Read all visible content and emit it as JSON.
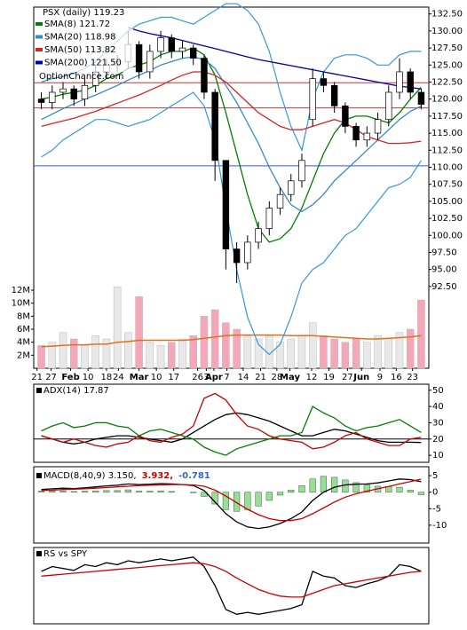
{
  "chart_data": [
    {
      "type": "candlestick",
      "title": "PSX (daily) 119.23",
      "watermark": "OptionChance.com",
      "x": [
        0,
        1,
        2,
        3,
        4,
        5,
        6,
        7,
        8,
        9,
        10,
        11,
        12,
        13,
        14,
        15,
        16,
        17,
        18,
        19,
        20,
        21,
        22,
        23,
        24,
        25,
        26,
        27,
        28,
        29,
        30,
        31,
        32,
        33,
        34,
        35
      ],
      "xlim": [
        -0.7,
        35.7
      ],
      "xticks": [
        {
          "value": -0.4,
          "label": "21"
        },
        {
          "value": 0.9,
          "label": "27"
        },
        {
          "value": 2.7,
          "label": "Feb"
        },
        {
          "value": 4.3,
          "label": "10"
        },
        {
          "value": 6.0,
          "label": "18"
        },
        {
          "value": 7.1,
          "label": "24"
        },
        {
          "value": 9.0,
          "label": "Mar"
        },
        {
          "value": 10.6,
          "label": "10"
        },
        {
          "value": 12.2,
          "label": "17"
        },
        {
          "value": 14.4,
          "label": "26"
        },
        {
          "value": 15.2,
          "label": "3"
        },
        {
          "value": 15.9,
          "label": "Apr"
        },
        {
          "value": 17.1,
          "label": "7"
        },
        {
          "value": 18.6,
          "label": "14"
        },
        {
          "value": 20.2,
          "label": "21"
        },
        {
          "value": 21.7,
          "label": "28"
        },
        {
          "value": 22.9,
          "label": "May"
        },
        {
          "value": 24.9,
          "label": "12"
        },
        {
          "value": 26.5,
          "label": "19"
        },
        {
          "value": 28.2,
          "label": "27"
        },
        {
          "value": 29.5,
          "label": "Jun"
        },
        {
          "value": 31.2,
          "label": "9"
        },
        {
          "value": 32.7,
          "label": "16"
        },
        {
          "value": 34.2,
          "label": "23"
        }
      ],
      "open": [
        120,
        119.5,
        121,
        121.5,
        120,
        122,
        124,
        125,
        125.5,
        128,
        124,
        127,
        129,
        127,
        127.5,
        126,
        121,
        111,
        98,
        96,
        99,
        101,
        104,
        106,
        108,
        117,
        123,
        122,
        119,
        116,
        114,
        115,
        117,
        121,
        124,
        121
      ],
      "high": [
        121,
        122,
        122.5,
        122,
        123,
        125,
        126,
        126.5,
        130,
        128.5,
        128,
        130,
        129.5,
        128.5,
        128,
        126.5,
        121.5,
        111,
        99,
        100,
        102,
        105,
        107,
        109,
        112,
        124.5,
        124,
        122.5,
        119.5,
        116.5,
        116,
        118,
        122,
        126,
        124.5,
        121.5
      ],
      "low": [
        118.5,
        118.5,
        120,
        119,
        119,
        121,
        123,
        124,
        124.5,
        123,
        123,
        126,
        126,
        126,
        125,
        120,
        108,
        95,
        93,
        95,
        98,
        100,
        103,
        105,
        107,
        116,
        121,
        118,
        115,
        113,
        113,
        114,
        116,
        120,
        120,
        118.5
      ],
      "close": [
        119.5,
        121,
        121.5,
        120,
        122,
        124,
        125,
        125.5,
        128,
        124,
        127,
        129,
        127,
        127.5,
        126,
        121,
        111,
        98,
        96,
        99,
        101,
        104,
        106,
        108,
        111,
        123,
        122,
        119,
        116,
        114,
        115,
        117,
        121,
        124,
        121,
        119.23
      ],
      "up_color": "#ffffff",
      "down_color": "#000000",
      "bands": {
        "color": "#3399dd",
        "upper": [
          122.5,
          123,
          123.3,
          123.8,
          124.5,
          125.5,
          127,
          128.5,
          130,
          131,
          131.5,
          132,
          132,
          131.5,
          131,
          132,
          133,
          134,
          134,
          133,
          131,
          127,
          121,
          116,
          112.5,
          120,
          124,
          126,
          126.5,
          126.5,
          126,
          125,
          125,
          126.5,
          127,
          127
        ],
        "lower": [
          111.5,
          112.5,
          114,
          115,
          116,
          117,
          117,
          116.5,
          116,
          116.5,
          117,
          118,
          119,
          120,
          121,
          119,
          114,
          104,
          95,
          88,
          84,
          82.5,
          84,
          88,
          93,
          95,
          96,
          98,
          100,
          101,
          103,
          105,
          107,
          107.5,
          108.5,
          111
        ]
      },
      "reference_lines": [
        {
          "value": 122.4,
          "color": "#cc3333"
        },
        {
          "value": 118.7,
          "color": "#cc3333"
        },
        {
          "value": 110.2,
          "color": "#3355dd"
        }
      ],
      "series": [
        {
          "name": "SMA(8) 121.72",
          "color": "#008000",
          "values": [
            120,
            120.3,
            120.7,
            121,
            121.3,
            122,
            123,
            123.5,
            124.5,
            125,
            125.5,
            126.5,
            127,
            127,
            127.5,
            126.5,
            123.5,
            118,
            112,
            106,
            101,
            99,
            99.5,
            101,
            104,
            108,
            112,
            115,
            117,
            117.5,
            117.5,
            117,
            116.5,
            118,
            120,
            121.72
          ]
        },
        {
          "name": "SMA(20) 118.98",
          "color": "#3388cc",
          "values": [
            117,
            117.8,
            118.6,
            119.3,
            120,
            120.6,
            121.3,
            122,
            122.8,
            123.5,
            124.2,
            125,
            125.5,
            126,
            126.2,
            125.8,
            124.5,
            122,
            119.5,
            116.5,
            113.5,
            110,
            107,
            104.5,
            103.5,
            104.5,
            106,
            108,
            109.5,
            111,
            112.5,
            114,
            115.5,
            117,
            118.2,
            118.98
          ]
        },
        {
          "name": "SMA(50) 113.82",
          "color": "#dd2222",
          "values": [
            116,
            116.4,
            116.8,
            117.2,
            117.7,
            118.2,
            118.8,
            119.4,
            120,
            120.6,
            121.3,
            122,
            122.8,
            123.5,
            124,
            124,
            123.5,
            122.5,
            121,
            119.5,
            118,
            117,
            116,
            115.5,
            115.5,
            116,
            116.5,
            117,
            116.5,
            115.5,
            114.5,
            114,
            113.5,
            113.5,
            113.6,
            113.82
          ]
        },
        {
          "name": "SMA(200) 121.50",
          "color": "#0000aa",
          "values": [
            null,
            null,
            null,
            null,
            null,
            null,
            null,
            null,
            130.5,
            130,
            129.6,
            129.3,
            129,
            128.6,
            128.2,
            127.8,
            127.4,
            127,
            126.6,
            126.2,
            125.8,
            125.5,
            125.2,
            124.9,
            124.6,
            124.3,
            124,
            123.7,
            123.4,
            123.1,
            122.8,
            122.5,
            122.2,
            121.9,
            121.7,
            121.5
          ]
        }
      ],
      "ylim": [
        80.5,
        133.5
      ],
      "yticks": [
        {
          "value": 132.5,
          "label": "132.50"
        },
        {
          "value": 130,
          "label": "130.00"
        },
        {
          "value": 127.5,
          "label": "127.50"
        },
        {
          "value": 125,
          "label": "125.00"
        },
        {
          "value": 122.5,
          "label": "122.50"
        },
        {
          "value": 120,
          "label": "120.00"
        },
        {
          "value": 117.5,
          "label": "117.50"
        },
        {
          "value": 115,
          "label": "115.00"
        },
        {
          "value": 112.5,
          "label": "112.50"
        },
        {
          "value": 110,
          "label": "110.00"
        },
        {
          "value": 107.5,
          "label": "107.50"
        },
        {
          "value": 105,
          "label": "105.00"
        },
        {
          "value": 102.5,
          "label": "102.50"
        },
        {
          "value": 100,
          "label": "100.00"
        },
        {
          "value": 97.5,
          "label": "97.50"
        },
        {
          "value": 95,
          "label": "95.00"
        },
        {
          "value": 92.5,
          "label": "92.50"
        }
      ],
      "volume": {
        "up_color": "#e8e8e8",
        "down_color": "#f4a7b9",
        "ylim": [
          0,
          55500000
        ],
        "yticks": [
          {
            "value": 2000000,
            "label": "2M"
          },
          {
            "value": 4000000,
            "label": "4M"
          },
          {
            "value": 6000000,
            "label": "6M"
          },
          {
            "value": 8000000,
            "label": "8M"
          },
          {
            "value": 10000000,
            "label": "10M"
          },
          {
            "value": 12000000,
            "label": "12M"
          }
        ],
        "values": [
          3500000,
          4000000,
          5500000,
          4500000,
          3500000,
          5000000,
          4500000,
          12500000,
          5500000,
          11000000,
          4000000,
          3500000,
          4000000,
          4500000,
          5000000,
          8000000,
          9000000,
          7000000,
          6000000,
          5000000,
          4500000,
          5000000,
          4000000,
          4500000,
          5000000,
          7000000,
          5000000,
          4500000,
          4000000,
          4500000,
          4000000,
          5000000,
          4500000,
          5500000,
          6000000,
          10500000
        ],
        "ma": {
          "color": "#e07020",
          "values": [
            3300000,
            3400000,
            3500000,
            3600000,
            3600000,
            3700000,
            3700000,
            4000000,
            4100000,
            4300000,
            4300000,
            4300000,
            4300000,
            4300000,
            4400000,
            4600000,
            4800000,
            5000000,
            5100000,
            5100000,
            5100000,
            5100000,
            5100000,
            5000000,
            5000000,
            5000000,
            4900000,
            4800000,
            4700000,
            4600000,
            4500000,
            4500000,
            4600000,
            4700000,
            4800000,
            5000000
          ]
        }
      }
    },
    {
      "type": "line",
      "title": "ADX(14) 17.87",
      "ylim": [
        5.7,
        53.7
      ],
      "yticks": [
        10,
        20,
        30,
        40,
        50
      ],
      "reference_lines": [
        {
          "value": 20,
          "color": "#000000"
        }
      ],
      "series": [
        {
          "color": "#000000",
          "values": [
            22,
            20,
            18,
            17,
            18,
            20,
            21,
            22,
            22,
            21,
            20,
            19,
            18,
            20,
            24,
            28,
            32,
            35,
            36,
            35,
            33,
            31,
            28,
            25,
            22,
            22,
            24,
            26,
            25,
            23,
            21,
            19,
            18,
            18,
            18,
            17.87
          ]
        },
        {
          "color": "#008000",
          "values": [
            25,
            28,
            30,
            27,
            28,
            30,
            30,
            28,
            27,
            22,
            25,
            26,
            24,
            22,
            20,
            15,
            12,
            10,
            14,
            16,
            18,
            20,
            22,
            22,
            24,
            40,
            36,
            33,
            28,
            25,
            27,
            28,
            30,
            32,
            28,
            24
          ]
        },
        {
          "color": "#cc0000",
          "values": [
            22,
            20,
            18,
            20,
            18,
            16,
            15,
            17,
            18,
            22,
            19,
            18,
            21,
            23,
            28,
            45,
            48,
            44,
            35,
            28,
            26,
            22,
            20,
            19,
            18,
            14,
            15,
            18,
            22,
            24,
            20,
            18,
            16,
            16,
            20,
            21
          ]
        }
      ]
    },
    {
      "type": "macd",
      "titles": [
        {
          "text": "MACD(8,40,9) 3.150,",
          "color": "#000000"
        },
        {
          "text": "3.932,",
          "color": "#cc0000"
        },
        {
          "text": "-0.781",
          "color": "#3366cc"
        }
      ],
      "ylim": [
        -15.4,
        7.7
      ],
      "yticks": [
        5,
        0,
        -5,
        -10
      ],
      "histogram": {
        "color": "#99dd99",
        "values": [
          0.3,
          0.4,
          0.4,
          0.2,
          0.3,
          0.4,
          0.5,
          0.5,
          0.7,
          0.3,
          0.3,
          0.4,
          0.2,
          0,
          -0.2,
          -1.3,
          -3.6,
          -5.3,
          -5.8,
          -5.3,
          -4.2,
          -2.5,
          -0.9,
          0.6,
          2,
          4,
          4.8,
          4.5,
          3.7,
          2.9,
          2.2,
          1.8,
          1.7,
          1.5,
          0.6,
          -0.781
        ]
      },
      "series": [
        {
          "color": "#000000",
          "values": [
            0.8,
            1,
            1.2,
            1.1,
            1.3,
            1.6,
            1.9,
            2.1,
            2.5,
            2.3,
            2.4,
            2.6,
            2.5,
            2.3,
            2,
            0.5,
            -3,
            -6.5,
            -9,
            -10.5,
            -11,
            -10.5,
            -9.5,
            -8,
            -6,
            -2.5,
            0,
            1.5,
            2.2,
            2.4,
            2.5,
            2.8,
            3.4,
            4,
            3.8,
            3.15
          ]
        },
        {
          "color": "#cc0000",
          "values": [
            0.5,
            0.6,
            0.8,
            0.9,
            1,
            1.2,
            1.4,
            1.6,
            1.8,
            2,
            2.1,
            2.2,
            2.3,
            2.3,
            2.2,
            1.8,
            0.6,
            -1.2,
            -3.2,
            -5.2,
            -6.8,
            -8,
            -8.6,
            -8.6,
            -8,
            -6.5,
            -4.8,
            -3,
            -1.5,
            -0.5,
            0.3,
            1,
            1.7,
            2.5,
            3.2,
            3.932
          ]
        }
      ]
    },
    {
      "type": "line",
      "title": "RS vs SPY",
      "ylim": [
        0,
        80
      ],
      "series": [
        {
          "color": "#000000",
          "values": [
            55,
            60,
            58,
            56,
            62,
            60,
            64,
            62,
            66,
            64,
            66,
            68,
            66,
            68,
            70,
            60,
            40,
            15,
            10,
            12,
            10,
            12,
            14,
            16,
            20,
            55,
            50,
            48,
            40,
            38,
            42,
            45,
            50,
            62,
            60,
            55
          ]
        },
        {
          "color": "#cc0000",
          "values": [
            50,
            51,
            52,
            53,
            54,
            55,
            56,
            57,
            58,
            59,
            60,
            61,
            62,
            63,
            64,
            63,
            60,
            55,
            48,
            42,
            36,
            32,
            29,
            28,
            28,
            32,
            36,
            40,
            42,
            44,
            46,
            48,
            50,
            52,
            54,
            55
          ]
        }
      ]
    }
  ]
}
